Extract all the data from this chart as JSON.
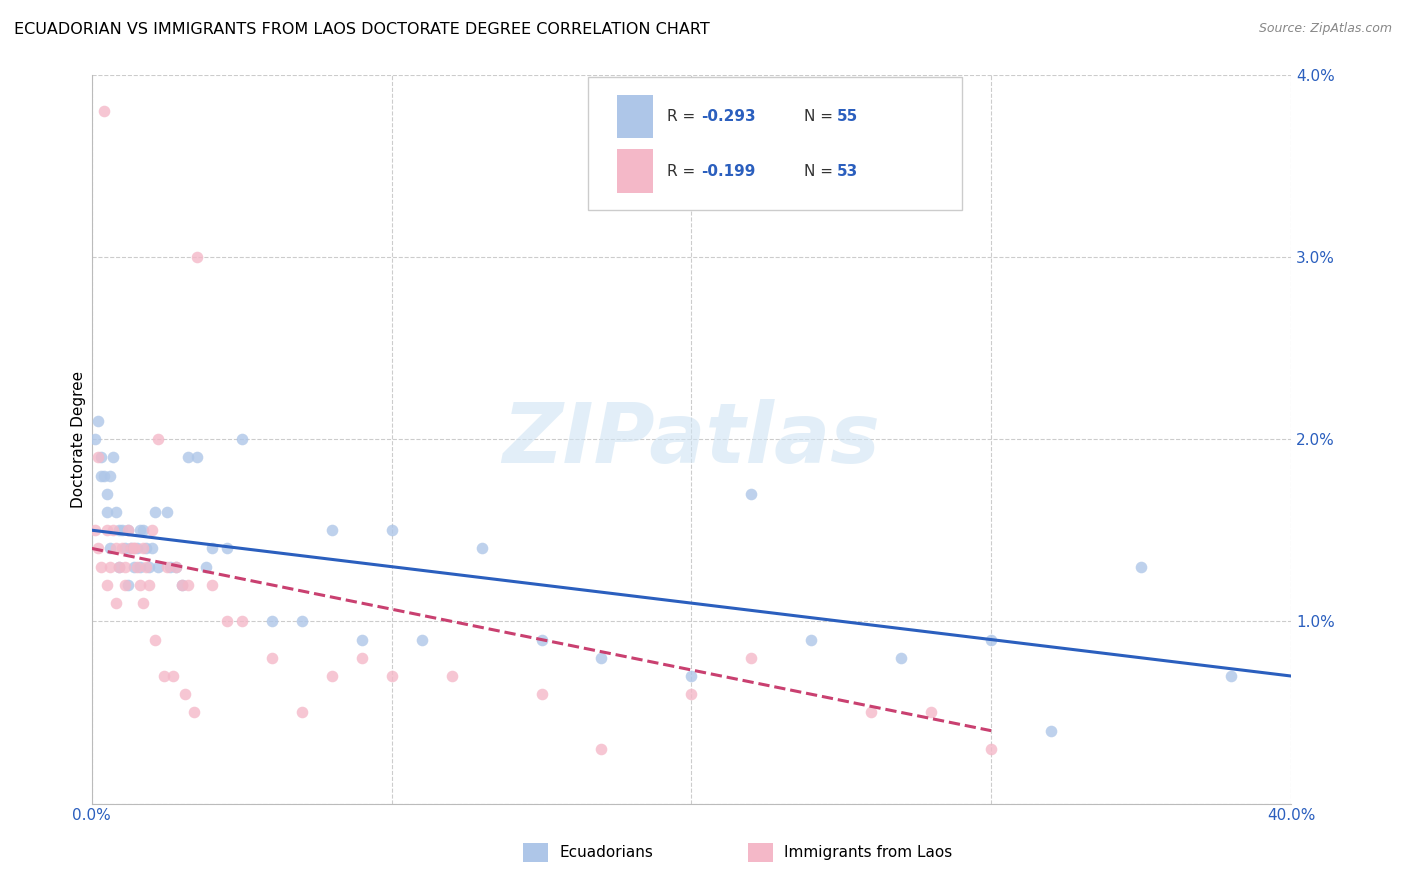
{
  "title": "ECUADORIAN VS IMMIGRANTS FROM LAOS DOCTORATE DEGREE CORRELATION CHART",
  "source": "Source: ZipAtlas.com",
  "ylabel": "Doctorate Degree",
  "xlim": [
    0,
    0.4
  ],
  "ylim": [
    0,
    0.04
  ],
  "xticks": [
    0.0,
    0.1,
    0.2,
    0.3,
    0.4
  ],
  "yticks": [
    0.0,
    0.01,
    0.02,
    0.03,
    0.04
  ],
  "blue_color": "#aec6e8",
  "pink_color": "#f4b8c8",
  "blue_line_color": "#2b5fbe",
  "pink_line_color": "#c94070",
  "watermark": "ZIPatlas",
  "legend_R1": "-0.293",
  "legend_N1": "55",
  "legend_R2": "-0.199",
  "legend_N2": "53",
  "legend_label1": "Ecuadorians",
  "legend_label2": "Immigrants from Laos",
  "blue_scatter_x": [
    0.001,
    0.002,
    0.003,
    0.004,
    0.005,
    0.005,
    0.006,
    0.007,
    0.008,
    0.009,
    0.01,
    0.011,
    0.012,
    0.013,
    0.014,
    0.015,
    0.016,
    0.017,
    0.018,
    0.019,
    0.02,
    0.022,
    0.025,
    0.028,
    0.03,
    0.032,
    0.035,
    0.04,
    0.045,
    0.05,
    0.06,
    0.07,
    0.08,
    0.09,
    0.1,
    0.11,
    0.13,
    0.15,
    0.17,
    0.2,
    0.22,
    0.24,
    0.27,
    0.3,
    0.32,
    0.35,
    0.003,
    0.006,
    0.009,
    0.012,
    0.016,
    0.021,
    0.026,
    0.038,
    0.38
  ],
  "blue_scatter_y": [
    0.02,
    0.021,
    0.019,
    0.018,
    0.017,
    0.016,
    0.018,
    0.019,
    0.016,
    0.015,
    0.015,
    0.014,
    0.015,
    0.014,
    0.013,
    0.014,
    0.013,
    0.015,
    0.014,
    0.013,
    0.014,
    0.013,
    0.016,
    0.013,
    0.012,
    0.019,
    0.019,
    0.014,
    0.014,
    0.02,
    0.01,
    0.01,
    0.015,
    0.009,
    0.015,
    0.009,
    0.014,
    0.009,
    0.008,
    0.007,
    0.017,
    0.009,
    0.008,
    0.009,
    0.004,
    0.013,
    0.018,
    0.014,
    0.013,
    0.012,
    0.015,
    0.016,
    0.013,
    0.013,
    0.007
  ],
  "pink_scatter_x": [
    0.001,
    0.002,
    0.003,
    0.004,
    0.005,
    0.006,
    0.007,
    0.008,
    0.009,
    0.01,
    0.011,
    0.012,
    0.013,
    0.014,
    0.015,
    0.016,
    0.017,
    0.018,
    0.019,
    0.02,
    0.022,
    0.025,
    0.028,
    0.03,
    0.032,
    0.035,
    0.04,
    0.045,
    0.05,
    0.06,
    0.07,
    0.08,
    0.09,
    0.1,
    0.12,
    0.15,
    0.17,
    0.2,
    0.22,
    0.26,
    0.28,
    0.3,
    0.005,
    0.008,
    0.011,
    0.014,
    0.017,
    0.021,
    0.024,
    0.027,
    0.031,
    0.034,
    0.002
  ],
  "pink_scatter_y": [
    0.015,
    0.014,
    0.013,
    0.038,
    0.015,
    0.013,
    0.015,
    0.014,
    0.013,
    0.014,
    0.013,
    0.015,
    0.014,
    0.014,
    0.013,
    0.012,
    0.014,
    0.013,
    0.012,
    0.015,
    0.02,
    0.013,
    0.013,
    0.012,
    0.012,
    0.03,
    0.012,
    0.01,
    0.01,
    0.008,
    0.005,
    0.007,
    0.008,
    0.007,
    0.007,
    0.006,
    0.003,
    0.006,
    0.008,
    0.005,
    0.005,
    0.003,
    0.012,
    0.011,
    0.012,
    0.014,
    0.011,
    0.009,
    0.007,
    0.007,
    0.006,
    0.005,
    0.019
  ],
  "blue_line_x": [
    0.0,
    0.4
  ],
  "blue_line_y": [
    0.015,
    0.007
  ],
  "pink_line_x": [
    0.0,
    0.3
  ],
  "pink_line_y": [
    0.014,
    0.004
  ],
  "marker_size": 70,
  "title_fontsize": 11.5,
  "axis_label_fontsize": 11,
  "tick_fontsize": 11,
  "highlight_color": "#2b5fbe",
  "text_color": "#333333"
}
